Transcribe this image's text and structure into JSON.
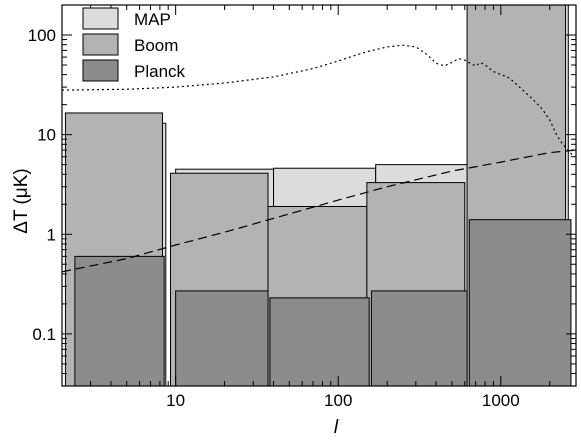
{
  "chart_data": {
    "type": "bar",
    "x_scale": "log",
    "y_scale": "log",
    "xlim": [
      2,
      2900
    ],
    "ylim": [
      0.03,
      200
    ],
    "xlabel": "l",
    "ylabel": "ΔT (μK)",
    "x_ticks": [
      {
        "value": 10,
        "label": "10"
      },
      {
        "value": 100,
        "label": "100"
      },
      {
        "value": 1000,
        "label": "1000"
      }
    ],
    "y_ticks": [
      {
        "value": 0.1,
        "label": "0.1"
      },
      {
        "value": 1,
        "label": "1"
      },
      {
        "value": 10,
        "label": "10"
      },
      {
        "value": 100,
        "label": "100"
      }
    ],
    "legend": {
      "position": "top-left"
    },
    "series": [
      {
        "name": "MAP",
        "color": "#dcdcdc",
        "bins": [
          {
            "l_min": 2.3,
            "l_max": 8.7,
            "value": 13
          },
          {
            "l_min": 10,
            "l_max": 40,
            "value": 4.5
          },
          {
            "l_min": 40,
            "l_max": 170,
            "value": 4.6
          },
          {
            "l_min": 170,
            "l_max": 700,
            "value": 5.0
          },
          {
            "l_min": 700,
            "l_max": 2600,
            "value": 200
          }
        ]
      },
      {
        "name": "Boom",
        "color": "#b3b3b3",
        "bins": [
          {
            "l_min": 2.1,
            "l_max": 8.3,
            "value": 16.5
          },
          {
            "l_min": 9.3,
            "l_max": 37,
            "value": 4.1
          },
          {
            "l_min": 37,
            "l_max": 150,
            "value": 1.9
          },
          {
            "l_min": 150,
            "l_max": 600,
            "value": 3.3
          },
          {
            "l_min": 620,
            "l_max": 2500,
            "value": 200
          }
        ]
      },
      {
        "name": "Planck",
        "color": "#8c8c8c",
        "bins": [
          {
            "l_min": 2.4,
            "l_max": 8.5,
            "value": 0.6
          },
          {
            "l_min": 10,
            "l_max": 37,
            "value": 0.27
          },
          {
            "l_min": 38,
            "l_max": 155,
            "value": 0.23
          },
          {
            "l_min": 160,
            "l_max": 620,
            "value": 0.27
          },
          {
            "l_min": 640,
            "l_max": 2700,
            "value": 1.4
          }
        ]
      }
    ],
    "curves": [
      {
        "style": "dotted",
        "points": [
          [
            2,
            28
          ],
          [
            5,
            28.5
          ],
          [
            10,
            30
          ],
          [
            20,
            33
          ],
          [
            40,
            38
          ],
          [
            70,
            46
          ],
          [
            100,
            55
          ],
          [
            150,
            68
          ],
          [
            200,
            76
          ],
          [
            250,
            79
          ],
          [
            300,
            76
          ],
          [
            350,
            64
          ],
          [
            400,
            52
          ],
          [
            450,
            49
          ],
          [
            500,
            53
          ],
          [
            550,
            58
          ],
          [
            600,
            56
          ],
          [
            650,
            52
          ],
          [
            700,
            49
          ],
          [
            750,
            53
          ],
          [
            800,
            50
          ],
          [
            900,
            43
          ],
          [
            1000,
            40
          ],
          [
            1100,
            38
          ],
          [
            1200,
            34
          ],
          [
            1400,
            27
          ],
          [
            1600,
            22
          ],
          [
            1800,
            18
          ],
          [
            2000,
            14
          ],
          [
            2200,
            10
          ],
          [
            2400,
            8
          ],
          [
            2600,
            7
          ],
          [
            2800,
            6
          ]
        ]
      },
      {
        "style": "dashed",
        "points": [
          [
            2,
            0.42
          ],
          [
            5,
            0.57
          ],
          [
            10,
            0.78
          ],
          [
            20,
            1.05
          ],
          [
            50,
            1.6
          ],
          [
            100,
            2.2
          ],
          [
            200,
            3.0
          ],
          [
            500,
            4.3
          ],
          [
            1000,
            5.3
          ],
          [
            2000,
            6.6
          ],
          [
            2900,
            7.0
          ]
        ]
      }
    ]
  }
}
